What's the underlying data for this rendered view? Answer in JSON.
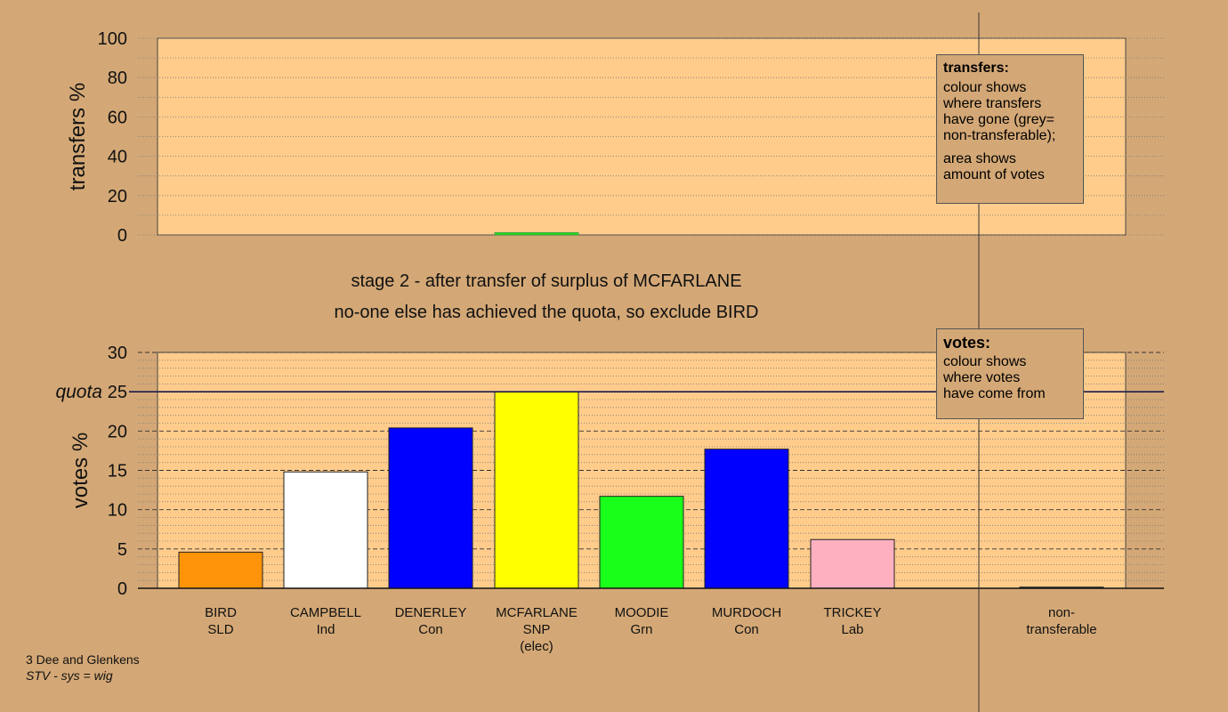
{
  "colors": {
    "background": "#d4a876",
    "plot_fill": "#ffcc8c",
    "quota_line": "#1a1a4d"
  },
  "stage_title": "stage 2 - after transfer of surplus of MCFARLANE",
  "stage_subtitle": "no-one else has achieved the quota, so exclude BIRD",
  "footer": {
    "constituency": "3 Dee and Glenkens",
    "system": "STV - sys = wig"
  },
  "legends": {
    "transfers": {
      "title": "transfers:",
      "lines": [
        "colour shows",
        "where transfers",
        "have gone (grey=",
        "non-transferable);"
      ],
      "lines2": [
        "area shows",
        "amount of votes"
      ]
    },
    "votes": {
      "title": "votes:",
      "lines": [
        "colour shows",
        "where votes",
        "have come from"
      ]
    }
  },
  "chart_data": [
    {
      "type": "bar",
      "ylabel": "transfers %",
      "ylim": [
        0,
        100
      ],
      "yticks": [
        0,
        20,
        40,
        60,
        80,
        100
      ],
      "categories": [
        "BIRD SLD",
        "CAMPBELL Ind",
        "DENERLEY Con",
        "MCFARLANE SNP (elec)",
        "MOODIE Grn",
        "MURDOCH Con",
        "TRICKEY Lab",
        "non-transferable"
      ],
      "values": [
        0,
        0,
        0,
        1.2,
        0,
        0,
        0,
        0
      ],
      "colors": [
        "#ff9408",
        "#ffffff",
        "#0000ff",
        "#22dd22",
        "#1aff1a",
        "#0000ff",
        "#ffb0c0",
        "#888888"
      ]
    },
    {
      "type": "bar",
      "ylabel": "votes %",
      "ylim": [
        0,
        30
      ],
      "yticks": [
        0,
        5,
        10,
        15,
        20,
        25,
        30
      ],
      "quota": {
        "label": "quota",
        "value": 25
      },
      "grid": true,
      "categories": [
        {
          "name": "BIRD",
          "party": "SLD",
          "note": ""
        },
        {
          "name": "CAMPBELL",
          "party": "Ind",
          "note": ""
        },
        {
          "name": "DENERLEY",
          "party": "Con",
          "note": ""
        },
        {
          "name": "MCFARLANE",
          "party": "SNP",
          "note": "(elec)"
        },
        {
          "name": "MOODIE",
          "party": "Grn",
          "note": ""
        },
        {
          "name": "MURDOCH",
          "party": "Con",
          "note": ""
        },
        {
          "name": "TRICKEY",
          "party": "Lab",
          "note": ""
        },
        {
          "name": "non-",
          "party": "transferable",
          "note": ""
        }
      ],
      "values": [
        4.6,
        14.8,
        20.4,
        25.0,
        11.7,
        17.7,
        6.2,
        0.15
      ],
      "colors": [
        "#ff9408",
        "#ffffff",
        "#0000ff",
        "#ffff00",
        "#1aff1a",
        "#0000ff",
        "#ffb0c0",
        "#555555"
      ]
    }
  ]
}
